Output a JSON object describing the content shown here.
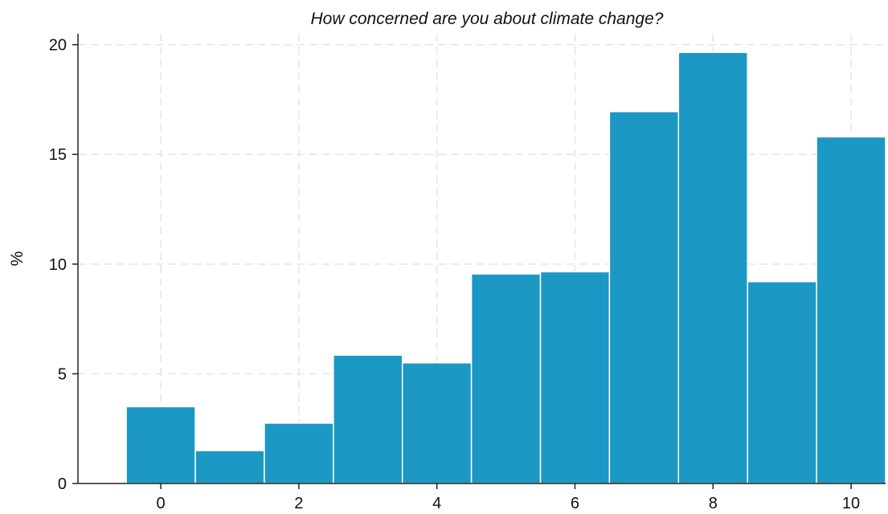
{
  "chart_data": {
    "type": "bar",
    "title": "How concerned are you about climate change?",
    "xlabel": "",
    "ylabel": "%",
    "categories": [
      0,
      1,
      2,
      3,
      4,
      5,
      6,
      7,
      8,
      9,
      10
    ],
    "values": [
      3.5,
      1.5,
      2.75,
      5.85,
      5.5,
      9.55,
      9.65,
      16.95,
      19.65,
      9.2,
      15.8
    ],
    "x_ticks": [
      0,
      2,
      4,
      6,
      8,
      10
    ],
    "y_ticks": [
      0,
      5,
      10,
      15,
      20
    ],
    "ylim": [
      0,
      20.5
    ],
    "xlim": [
      -1.2,
      10.5
    ],
    "grid": true,
    "bar_color": "#1c98c5",
    "grid_color": "#e5e5e5",
    "axis_color": "#222222"
  }
}
